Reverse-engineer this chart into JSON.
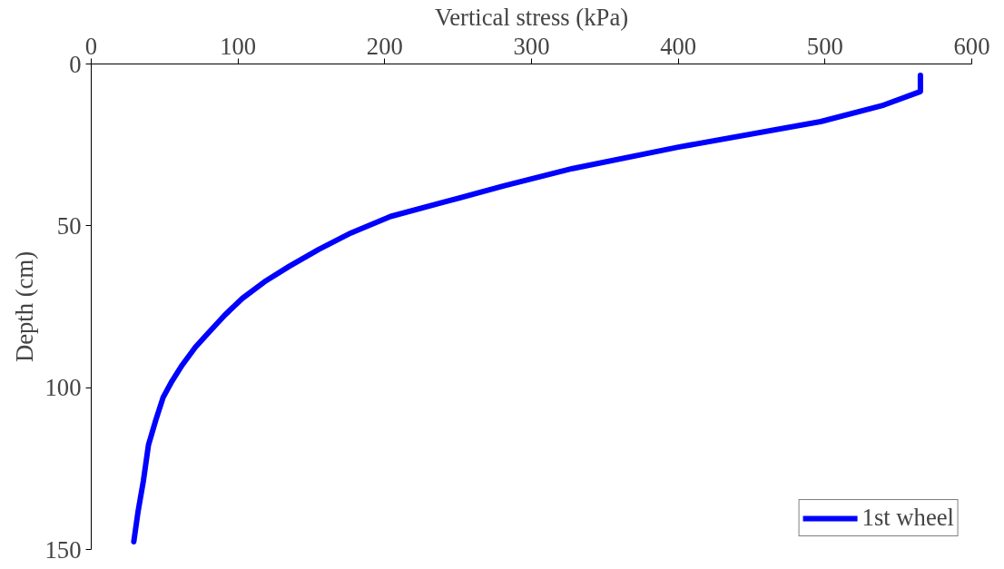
{
  "chart_data": {
    "type": "line",
    "xlabel": "Vertical stress (kPa)",
    "ylabel": "Depth (cm)",
    "xlim": [
      0,
      600
    ],
    "xticks": [
      0,
      100,
      200,
      300,
      400,
      500,
      600
    ],
    "ylim": [
      150,
      0
    ],
    "yticks": [
      0,
      50,
      100,
      150
    ],
    "grid": false,
    "legend": "bottom right",
    "marker": "none",
    "line_style": "solid",
    "series": [
      {
        "name": "1st wheel",
        "color": "#0000ff",
        "x": [
          565,
          565,
          540,
          497,
          400,
          328,
          281,
          241,
          204,
          177,
          155,
          135,
          118,
          103,
          91,
          80,
          71,
          62,
          55,
          49,
          44,
          39,
          35.5,
          32,
          29
        ],
        "values": [
          3.5,
          8.5,
          12.7,
          17.8,
          25.7,
          32.3,
          37.7,
          42.6,
          47.1,
          52.2,
          57.3,
          62.5,
          67.3,
          72.4,
          77.6,
          83,
          87.5,
          93,
          98,
          103,
          110,
          117.7,
          128.9,
          138,
          147.6
        ]
      }
    ]
  }
}
